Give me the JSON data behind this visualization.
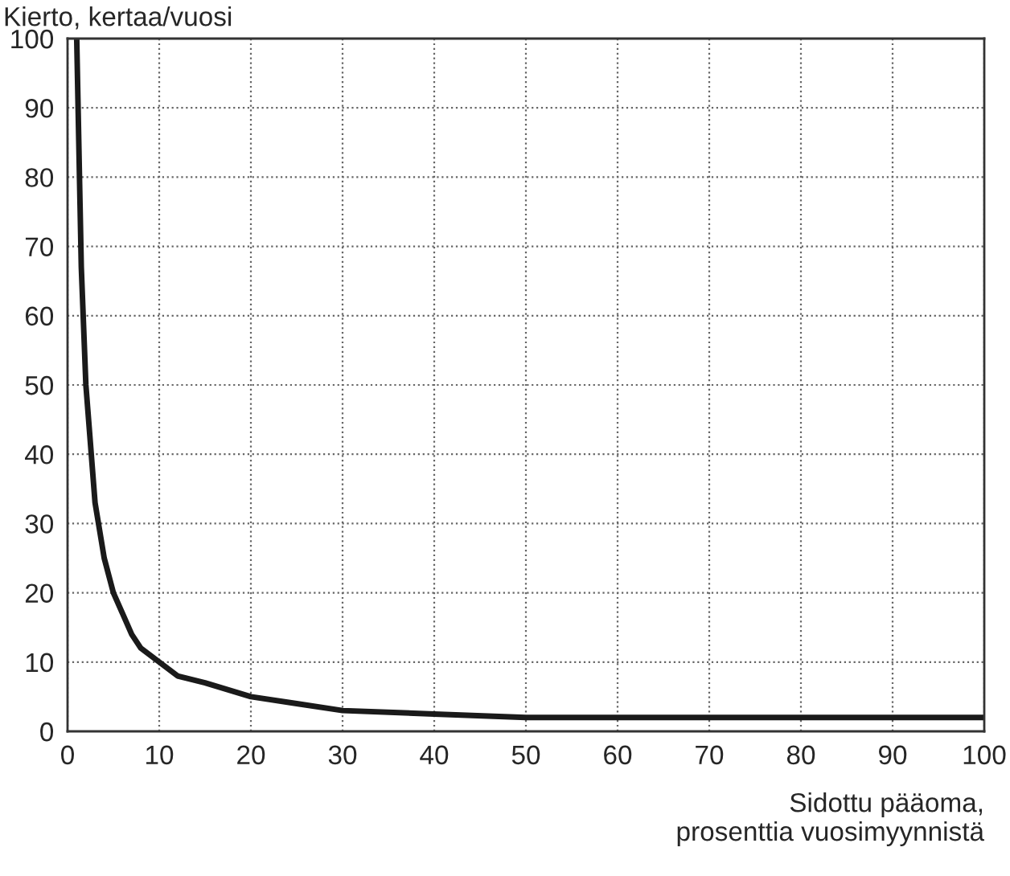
{
  "chart_data": {
    "type": "line",
    "ylabel": "Kierto, kertaa/vuosi",
    "xlabel": "Sidottu pääoma,\nprosenttia vuosimyynnistä",
    "x": [
      1,
      1.5,
      2,
      3,
      4,
      5,
      6,
      7,
      8,
      10,
      12,
      15,
      20,
      25,
      30,
      40,
      50,
      60,
      70,
      80,
      90,
      100
    ],
    "series": [
      {
        "color": "#1a1a1a",
        "values": [
          100,
          67,
          50,
          33,
          25,
          20,
          17,
          14,
          12,
          10,
          8,
          7,
          5,
          4,
          3,
          2.5,
          2,
          2,
          2,
          2,
          2,
          2
        ]
      }
    ],
    "xlim": [
      0,
      100
    ],
    "ylim": [
      0,
      100
    ],
    "xticks": [
      0,
      10,
      20,
      30,
      40,
      50,
      60,
      70,
      80,
      90,
      100
    ],
    "yticks": [
      0,
      10,
      20,
      30,
      40,
      50,
      60,
      70,
      80,
      90,
      100
    ],
    "grid": true,
    "marker": "none",
    "line_style": "solid"
  }
}
